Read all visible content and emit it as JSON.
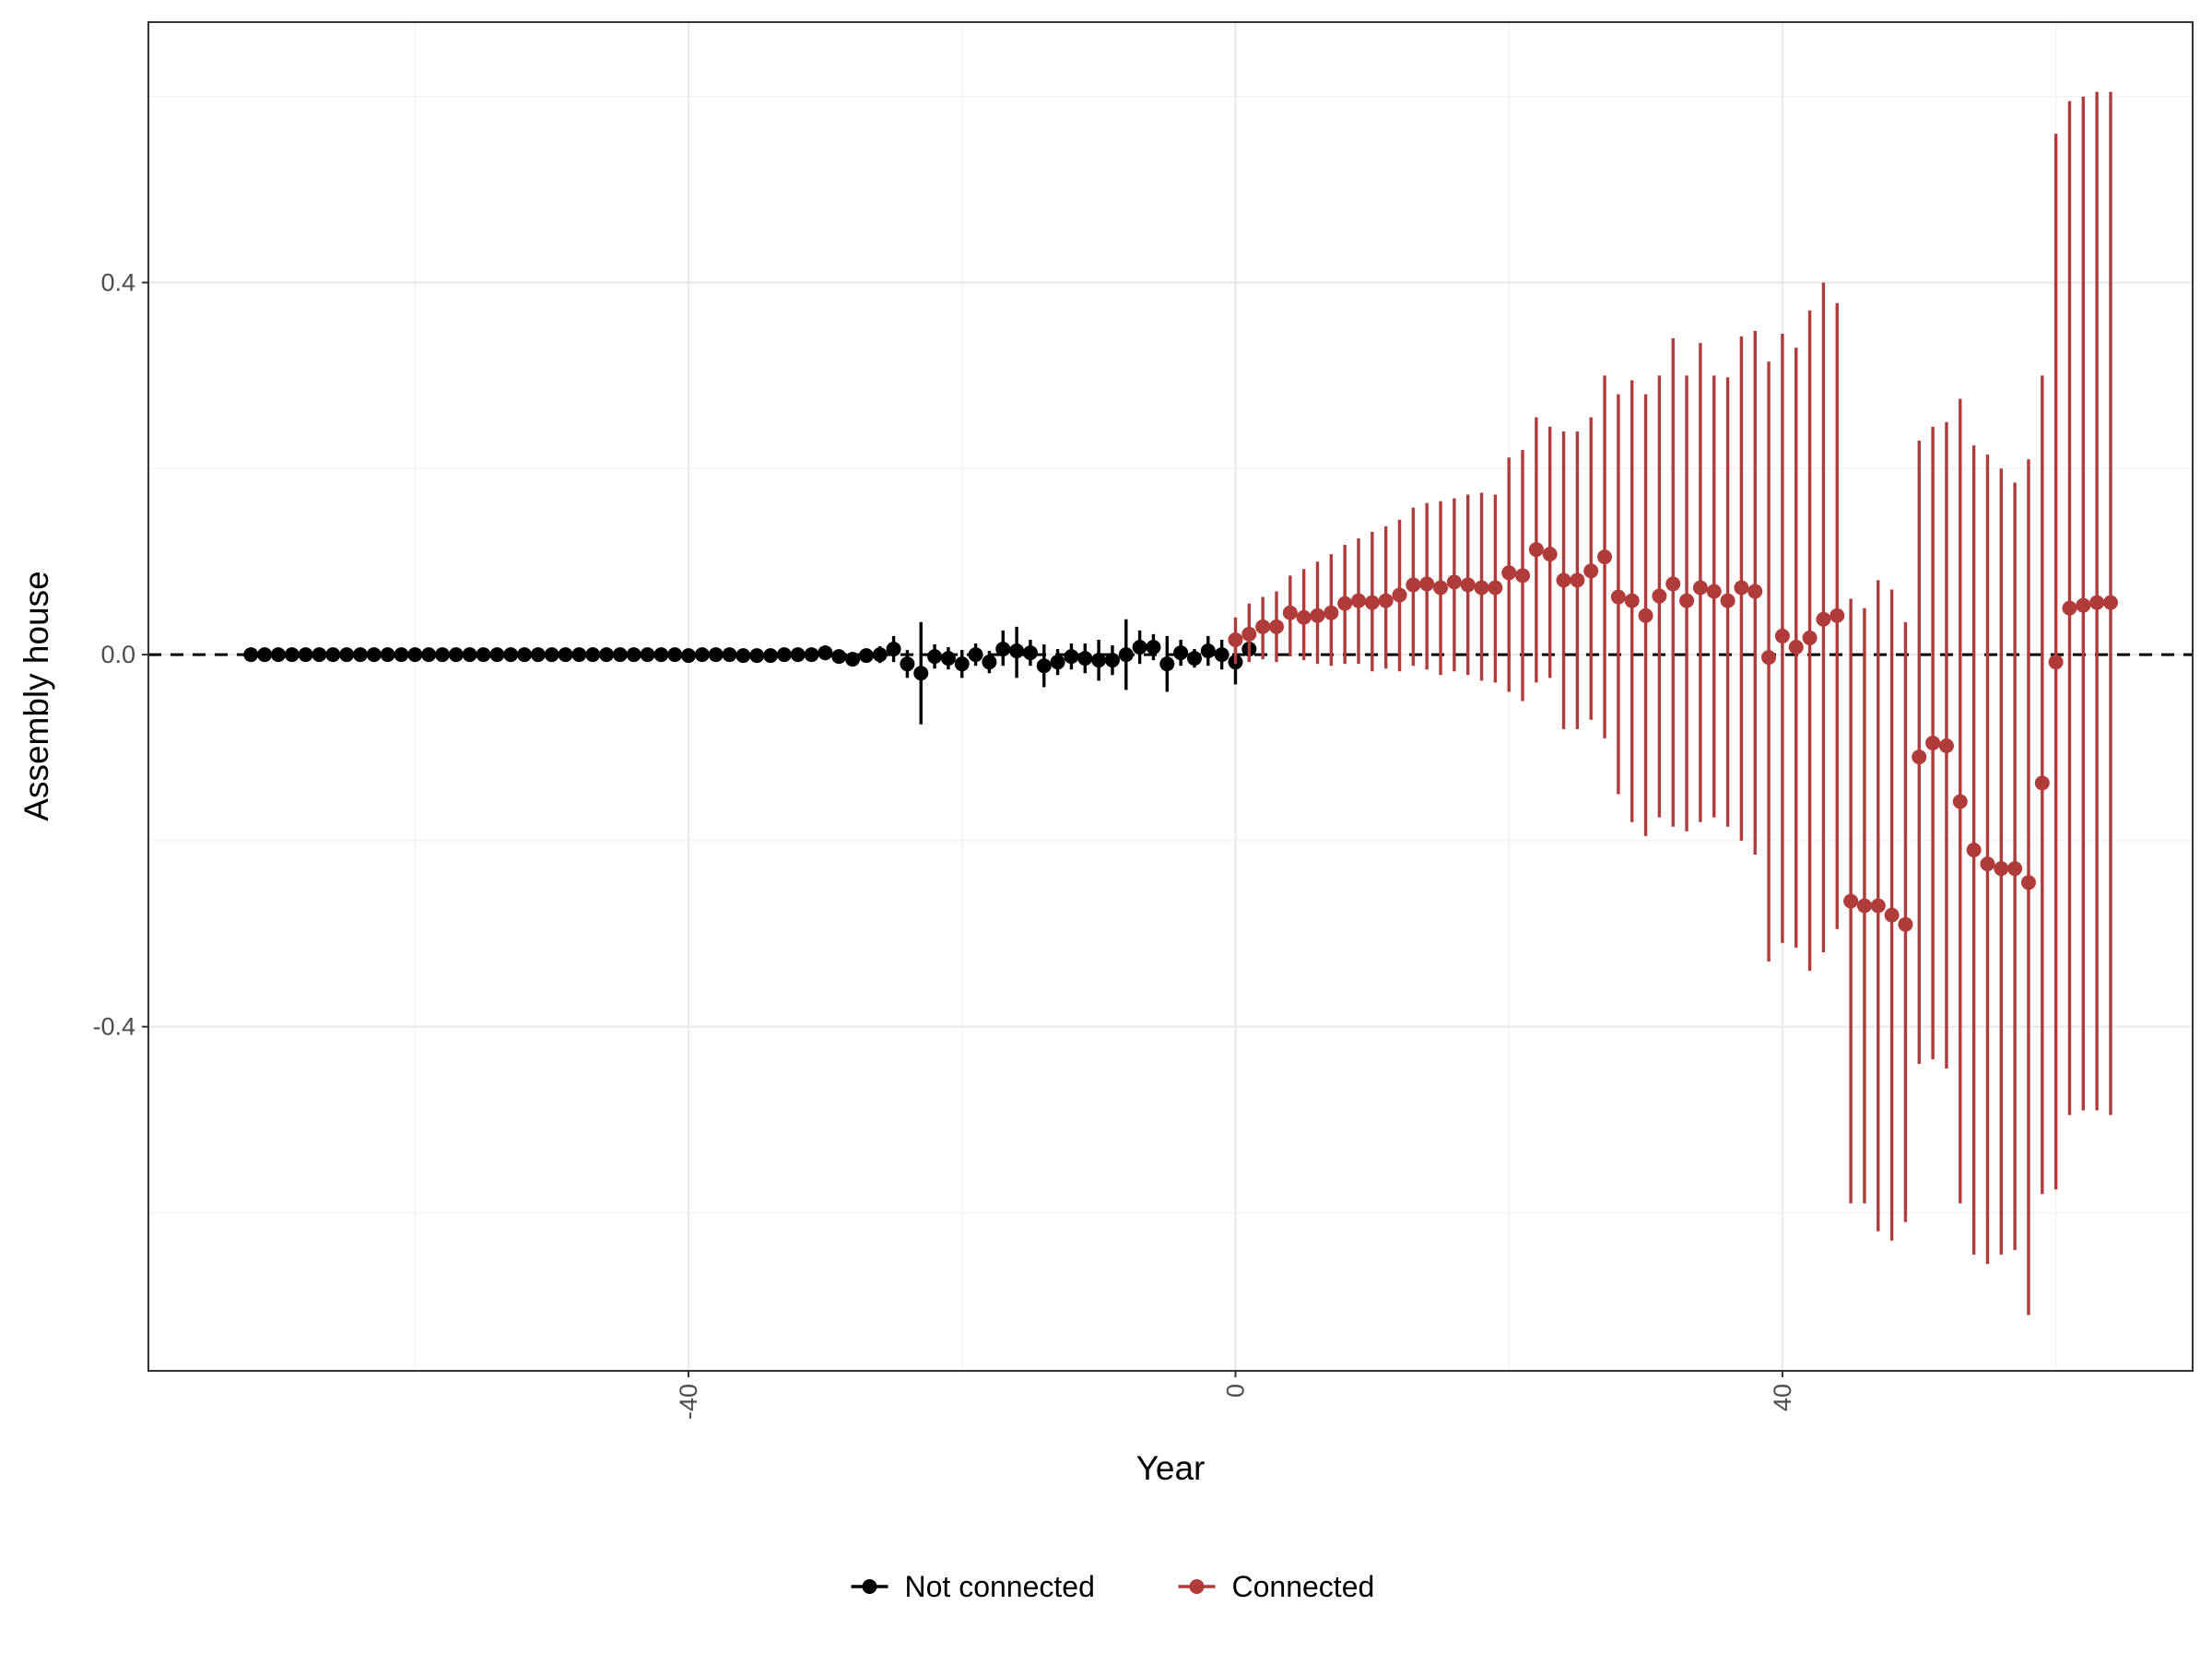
{
  "chart_data": {
    "type": "scatter",
    "xlabel": "Year",
    "ylabel": "Assembly house",
    "xlim": [
      -79.5,
      70
    ],
    "ylim": [
      -0.77,
      0.68
    ],
    "x_ticks": [
      -40,
      0,
      40
    ],
    "x_tick_labels": [
      "-40",
      "0",
      "40"
    ],
    "y_ticks": [
      -0.4,
      0.0,
      0.4
    ],
    "y_tick_labels": [
      "-0.4",
      "0.0",
      "0.4"
    ],
    "reference_line": {
      "y": 0,
      "style": "dashed"
    },
    "grid": true,
    "legend_position": "bottom",
    "series": [
      {
        "name": "Not connected",
        "color": "#000000",
        "points": [
          {
            "x": -72,
            "y": 0.0,
            "lo": 0.0,
            "hi": 0.0
          },
          {
            "x": -71,
            "y": 0.0,
            "lo": 0.0,
            "hi": 0.0
          },
          {
            "x": -70,
            "y": 0.0,
            "lo": 0.0,
            "hi": 0.0
          },
          {
            "x": -69,
            "y": 0.0,
            "lo": 0.0,
            "hi": 0.0
          },
          {
            "x": -68,
            "y": 0.0,
            "lo": 0.0,
            "hi": 0.0
          },
          {
            "x": -67,
            "y": 0.0,
            "lo": 0.0,
            "hi": 0.0
          },
          {
            "x": -66,
            "y": 0.0,
            "lo": 0.0,
            "hi": 0.0
          },
          {
            "x": -65,
            "y": 0.0,
            "lo": 0.0,
            "hi": 0.0
          },
          {
            "x": -64,
            "y": 0.0,
            "lo": 0.0,
            "hi": 0.0
          },
          {
            "x": -63,
            "y": 0.0,
            "lo": 0.0,
            "hi": 0.0
          },
          {
            "x": -62,
            "y": 0.0,
            "lo": 0.0,
            "hi": 0.0
          },
          {
            "x": -61,
            "y": 0.0,
            "lo": 0.0,
            "hi": 0.0
          },
          {
            "x": -60,
            "y": 0.0,
            "lo": 0.0,
            "hi": 0.0
          },
          {
            "x": -59,
            "y": 0.0,
            "lo": 0.0,
            "hi": 0.0
          },
          {
            "x": -58,
            "y": 0.0,
            "lo": 0.0,
            "hi": 0.0
          },
          {
            "x": -57,
            "y": 0.0,
            "lo": 0.0,
            "hi": 0.0
          },
          {
            "x": -56,
            "y": 0.0,
            "lo": 0.0,
            "hi": 0.0
          },
          {
            "x": -55,
            "y": 0.0,
            "lo": 0.0,
            "hi": 0.0
          },
          {
            "x": -54,
            "y": 0.0,
            "lo": 0.0,
            "hi": 0.0
          },
          {
            "x": -53,
            "y": 0.0,
            "lo": 0.0,
            "hi": 0.0
          },
          {
            "x": -52,
            "y": 0.0,
            "lo": 0.0,
            "hi": 0.0
          },
          {
            "x": -51,
            "y": 0.0,
            "lo": 0.0,
            "hi": 0.0
          },
          {
            "x": -50,
            "y": 0.0,
            "lo": 0.0,
            "hi": 0.0
          },
          {
            "x": -49,
            "y": 0.0,
            "lo": 0.0,
            "hi": 0.0
          },
          {
            "x": -48,
            "y": 0.0,
            "lo": 0.0,
            "hi": 0.0
          },
          {
            "x": -47,
            "y": 0.0,
            "lo": 0.0,
            "hi": 0.0
          },
          {
            "x": -46,
            "y": 0.0,
            "lo": 0.0,
            "hi": 0.0
          },
          {
            "x": -45,
            "y": 0.0,
            "lo": 0.0,
            "hi": 0.0
          },
          {
            "x": -44,
            "y": 0.0,
            "lo": 0.0,
            "hi": 0.0
          },
          {
            "x": -43,
            "y": 0.0,
            "lo": 0.0,
            "hi": 0.0
          },
          {
            "x": -42,
            "y": 0.0,
            "lo": 0.0,
            "hi": 0.0
          },
          {
            "x": -41,
            "y": 0.0,
            "lo": 0.0,
            "hi": 0.0
          },
          {
            "x": -40,
            "y": -0.001,
            "lo": -0.002,
            "hi": 0.0
          },
          {
            "x": -39,
            "y": 0.0,
            "lo": -0.001,
            "hi": 0.001
          },
          {
            "x": -38,
            "y": 0.0,
            "lo": -0.001,
            "hi": 0.001
          },
          {
            "x": -37,
            "y": 0.0,
            "lo": -0.002,
            "hi": 0.002
          },
          {
            "x": -36,
            "y": -0.001,
            "lo": -0.002,
            "hi": 0.0
          },
          {
            "x": -35,
            "y": -0.001,
            "lo": -0.003,
            "hi": 0.001
          },
          {
            "x": -34,
            "y": -0.001,
            "lo": -0.004,
            "hi": 0.002
          },
          {
            "x": -33,
            "y": 0.0,
            "lo": -0.004,
            "hi": 0.004
          },
          {
            "x": -32,
            "y": 0.0,
            "lo": -0.004,
            "hi": 0.004
          },
          {
            "x": -31,
            "y": 0.0,
            "lo": -0.006,
            "hi": 0.006
          },
          {
            "x": -30,
            "y": 0.002,
            "lo": -0.006,
            "hi": 0.01
          },
          {
            "x": -29,
            "y": -0.002,
            "lo": -0.008,
            "hi": 0.004
          },
          {
            "x": -28,
            "y": -0.005,
            "lo": -0.01,
            "hi": 0.0
          },
          {
            "x": -27,
            "y": -0.001,
            "lo": -0.008,
            "hi": 0.006
          },
          {
            "x": -26,
            "y": 0.0,
            "lo": -0.009,
            "hi": 0.009
          },
          {
            "x": -25,
            "y": 0.006,
            "lo": -0.008,
            "hi": 0.02
          },
          {
            "x": -24,
            "y": -0.01,
            "lo": -0.025,
            "hi": 0.005
          },
          {
            "x": -23,
            "y": -0.02,
            "lo": -0.075,
            "hi": 0.035
          },
          {
            "x": -22,
            "y": -0.002,
            "lo": -0.015,
            "hi": 0.011
          },
          {
            "x": -21,
            "y": -0.004,
            "lo": -0.016,
            "hi": 0.008
          },
          {
            "x": -20,
            "y": -0.01,
            "lo": -0.025,
            "hi": 0.005
          },
          {
            "x": -19,
            "y": 0.0,
            "lo": -0.012,
            "hi": 0.012
          },
          {
            "x": -18,
            "y": -0.008,
            "lo": -0.02,
            "hi": 0.004
          },
          {
            "x": -17,
            "y": 0.006,
            "lo": -0.012,
            "hi": 0.026
          },
          {
            "x": -16,
            "y": 0.004,
            "lo": -0.025,
            "hi": 0.03
          },
          {
            "x": -15,
            "y": 0.002,
            "lo": -0.012,
            "hi": 0.016
          },
          {
            "x": -14,
            "y": -0.012,
            "lo": -0.035,
            "hi": 0.011
          },
          {
            "x": -13,
            "y": -0.008,
            "lo": -0.022,
            "hi": 0.006
          },
          {
            "x": -12,
            "y": -0.002,
            "lo": -0.016,
            "hi": 0.012
          },
          {
            "x": -11,
            "y": -0.004,
            "lo": -0.02,
            "hi": 0.012
          },
          {
            "x": -10,
            "y": -0.006,
            "lo": -0.028,
            "hi": 0.016
          },
          {
            "x": -9,
            "y": -0.006,
            "lo": -0.022,
            "hi": 0.01
          },
          {
            "x": -8,
            "y": 0.0,
            "lo": -0.038,
            "hi": 0.038
          },
          {
            "x": -7,
            "y": 0.008,
            "lo": -0.01,
            "hi": 0.026
          },
          {
            "x": -6,
            "y": 0.008,
            "lo": -0.006,
            "hi": 0.022
          },
          {
            "x": -5,
            "y": -0.01,
            "lo": -0.04,
            "hi": 0.02
          },
          {
            "x": -4,
            "y": 0.002,
            "lo": -0.012,
            "hi": 0.016
          },
          {
            "x": -3,
            "y": -0.004,
            "lo": -0.014,
            "hi": 0.006
          },
          {
            "x": -2,
            "y": 0.004,
            "lo": -0.012,
            "hi": 0.02
          },
          {
            "x": -1,
            "y": 0.0,
            "lo": -0.016,
            "hi": 0.016
          },
          {
            "x": 0,
            "y": -0.008,
            "lo": -0.032,
            "hi": 0.016
          },
          {
            "x": 1,
            "y": 0.006,
            "lo": -0.006,
            "hi": 0.018
          }
        ]
      },
      {
        "name": "Connected",
        "color": "#b13a3a",
        "points": [
          {
            "x": 0,
            "y": 0.016,
            "lo": -0.01,
            "hi": 0.04
          },
          {
            "x": 1,
            "y": 0.022,
            "lo": -0.008,
            "hi": 0.055
          },
          {
            "x": 2,
            "y": 0.03,
            "lo": -0.005,
            "hi": 0.062
          },
          {
            "x": 3,
            "y": 0.03,
            "lo": -0.008,
            "hi": 0.068
          },
          {
            "x": 4,
            "y": 0.045,
            "lo": -0.002,
            "hi": 0.085
          },
          {
            "x": 5,
            "y": 0.04,
            "lo": -0.006,
            "hi": 0.092
          },
          {
            "x": 6,
            "y": 0.042,
            "lo": -0.01,
            "hi": 0.1
          },
          {
            "x": 7,
            "y": 0.045,
            "lo": -0.012,
            "hi": 0.108
          },
          {
            "x": 8,
            "y": 0.055,
            "lo": -0.01,
            "hi": 0.118
          },
          {
            "x": 9,
            "y": 0.058,
            "lo": -0.01,
            "hi": 0.125
          },
          {
            "x": 10,
            "y": 0.056,
            "lo": -0.018,
            "hi": 0.132
          },
          {
            "x": 11,
            "y": 0.058,
            "lo": -0.015,
            "hi": 0.138
          },
          {
            "x": 12,
            "y": 0.064,
            "lo": -0.018,
            "hi": 0.145
          },
          {
            "x": 13,
            "y": 0.075,
            "lo": -0.012,
            "hi": 0.158
          },
          {
            "x": 14,
            "y": 0.076,
            "lo": -0.016,
            "hi": 0.163
          },
          {
            "x": 15,
            "y": 0.072,
            "lo": -0.022,
            "hi": 0.165
          },
          {
            "x": 16,
            "y": 0.078,
            "lo": -0.018,
            "hi": 0.168
          },
          {
            "x": 17,
            "y": 0.075,
            "lo": -0.022,
            "hi": 0.172
          },
          {
            "x": 18,
            "y": 0.072,
            "lo": -0.028,
            "hi": 0.174
          },
          {
            "x": 19,
            "y": 0.072,
            "lo": -0.03,
            "hi": 0.172
          },
          {
            "x": 20,
            "y": 0.088,
            "lo": -0.04,
            "hi": 0.212
          },
          {
            "x": 21,
            "y": 0.085,
            "lo": -0.05,
            "hi": 0.22
          },
          {
            "x": 22,
            "y": 0.113,
            "lo": -0.03,
            "hi": 0.255
          },
          {
            "x": 23,
            "y": 0.108,
            "lo": -0.025,
            "hi": 0.245
          },
          {
            "x": 24,
            "y": 0.08,
            "lo": -0.08,
            "hi": 0.24
          },
          {
            "x": 25,
            "y": 0.08,
            "lo": -0.08,
            "hi": 0.24
          },
          {
            "x": 26,
            "y": 0.09,
            "lo": -0.07,
            "hi": 0.255
          },
          {
            "x": 27,
            "y": 0.105,
            "lo": -0.09,
            "hi": 0.3
          },
          {
            "x": 28,
            "y": 0.062,
            "lo": -0.15,
            "hi": 0.28
          },
          {
            "x": 29,
            "y": 0.058,
            "lo": -0.18,
            "hi": 0.295
          },
          {
            "x": 30,
            "y": 0.042,
            "lo": -0.195,
            "hi": 0.28
          },
          {
            "x": 31,
            "y": 0.063,
            "lo": -0.175,
            "hi": 0.3
          },
          {
            "x": 32,
            "y": 0.076,
            "lo": -0.185,
            "hi": 0.34
          },
          {
            "x": 33,
            "y": 0.058,
            "lo": -0.19,
            "hi": 0.3
          },
          {
            "x": 34,
            "y": 0.072,
            "lo": -0.18,
            "hi": 0.335
          },
          {
            "x": 35,
            "y": 0.068,
            "lo": -0.175,
            "hi": 0.3
          },
          {
            "x": 36,
            "y": 0.058,
            "lo": -0.185,
            "hi": 0.298
          },
          {
            "x": 37,
            "y": 0.072,
            "lo": -0.2,
            "hi": 0.342
          },
          {
            "x": 38,
            "y": 0.068,
            "lo": -0.215,
            "hi": 0.348
          },
          {
            "x": 39,
            "y": -0.003,
            "lo": -0.33,
            "hi": 0.315
          },
          {
            "x": 40,
            "y": 0.02,
            "lo": -0.31,
            "hi": 0.345
          },
          {
            "x": 41,
            "y": 0.008,
            "lo": -0.315,
            "hi": 0.33
          },
          {
            "x": 42,
            "y": 0.018,
            "lo": -0.34,
            "hi": 0.37
          },
          {
            "x": 43,
            "y": 0.038,
            "lo": -0.32,
            "hi": 0.4
          },
          {
            "x": 44,
            "y": 0.042,
            "lo": -0.295,
            "hi": 0.378
          },
          {
            "x": 45,
            "y": -0.265,
            "lo": -0.59,
            "hi": 0.06
          },
          {
            "x": 46,
            "y": -0.27,
            "lo": -0.59,
            "hi": 0.05
          },
          {
            "x": 47,
            "y": -0.27,
            "lo": -0.62,
            "hi": 0.08
          },
          {
            "x": 48,
            "y": -0.28,
            "lo": -0.63,
            "hi": 0.07
          },
          {
            "x": 49,
            "y": -0.29,
            "lo": -0.61,
            "hi": 0.035
          },
          {
            "x": 50,
            "y": -0.11,
            "lo": -0.44,
            "hi": 0.23
          },
          {
            "x": 51,
            "y": -0.095,
            "lo": -0.435,
            "hi": 0.245
          },
          {
            "x": 52,
            "y": -0.098,
            "lo": -0.445,
            "hi": 0.25
          },
          {
            "x": 53,
            "y": -0.158,
            "lo": -0.59,
            "hi": 0.275
          },
          {
            "x": 54,
            "y": -0.21,
            "lo": -0.645,
            "hi": 0.225
          },
          {
            "x": 55,
            "y": -0.225,
            "lo": -0.655,
            "hi": 0.215
          },
          {
            "x": 56,
            "y": -0.23,
            "lo": -0.645,
            "hi": 0.2
          },
          {
            "x": 57,
            "y": -0.23,
            "lo": -0.64,
            "hi": 0.185
          },
          {
            "x": 58,
            "y": -0.245,
            "lo": -0.71,
            "hi": 0.21
          },
          {
            "x": 59,
            "y": -0.138,
            "lo": -0.58,
            "hi": 0.3
          },
          {
            "x": 60,
            "y": -0.008,
            "lo": -0.575,
            "hi": 0.56
          },
          {
            "x": 61,
            "y": 0.05,
            "lo": -0.495,
            "hi": 0.595
          },
          {
            "x": 62,
            "y": 0.053,
            "lo": -0.49,
            "hi": 0.6
          },
          {
            "x": 63,
            "y": 0.056,
            "lo": -0.49,
            "hi": 0.605
          },
          {
            "x": 64,
            "y": 0.056,
            "lo": -0.495,
            "hi": 0.605
          }
        ]
      }
    ]
  }
}
